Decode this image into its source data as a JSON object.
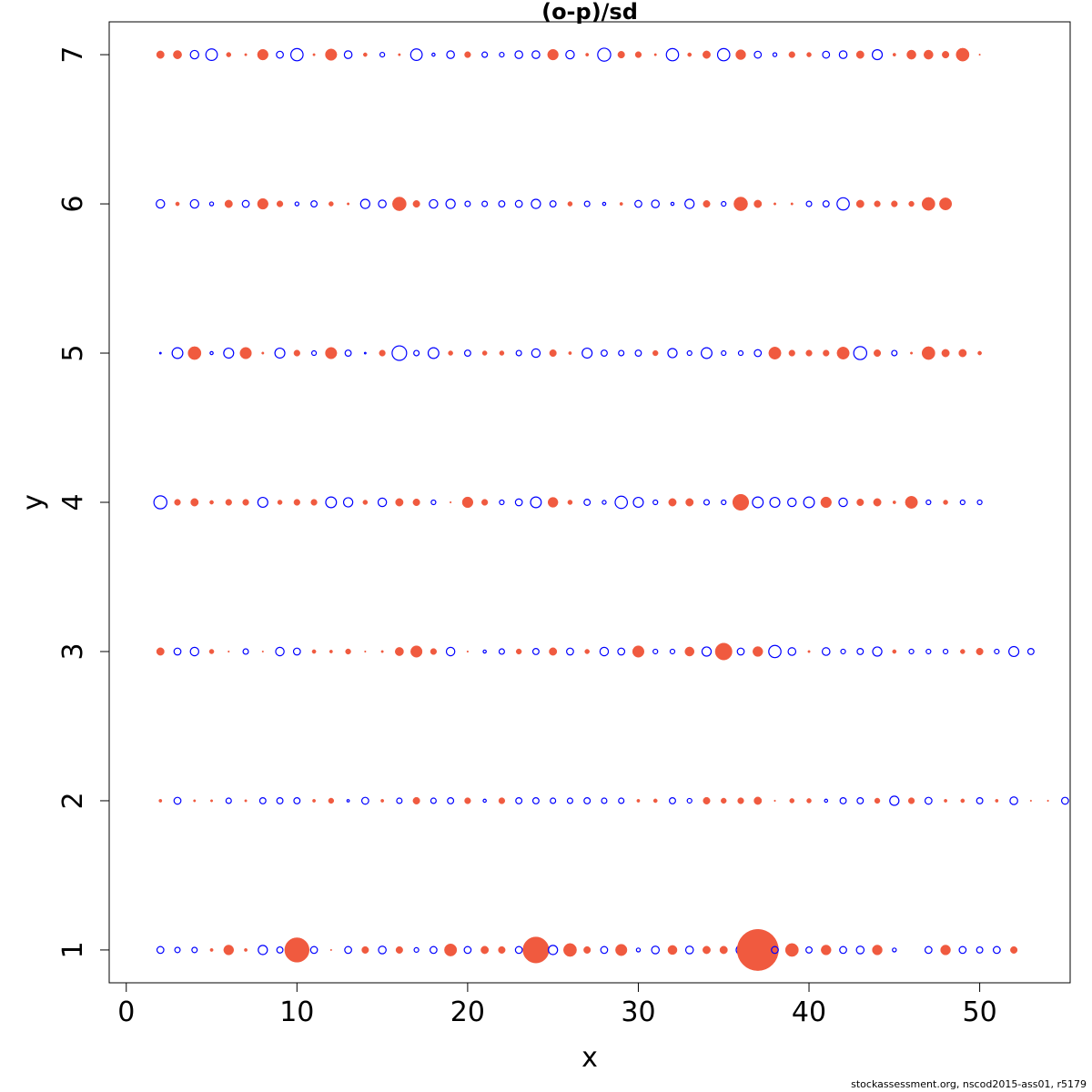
{
  "chart_data": {
    "type": "scatter",
    "title": "(o-p)/sd",
    "xlabel": "x",
    "ylabel": "y",
    "xlim": [
      -1,
      55.3
    ],
    "ylim": [
      0.78,
      7.22
    ],
    "x_ticks": [
      0,
      10,
      20,
      30,
      40,
      50
    ],
    "y_ticks": [
      1,
      2,
      3,
      4,
      5,
      6,
      7
    ],
    "grid": false,
    "marker_encoding": "circle radius proportional to |residual|; filled tomato = positive, open blue = negative",
    "positive_color": "#F05A3F",
    "negative_color": "#0000FF",
    "series": [
      {
        "y": 1,
        "residuals": [
          -0.9,
          -0.7,
          -0.7,
          0.4,
          1.3,
          0.4,
          -1.2,
          -0.8,
          3.2,
          -0.9,
          0.1,
          -0.9,
          0.9,
          -1.0,
          0.9,
          -0.6,
          -0.9,
          1.6,
          -0.9,
          1.0,
          0.9,
          -0.9,
          3.4,
          -1.2,
          1.7,
          0.9,
          -0.9,
          1.5,
          -0.5,
          -1.0,
          1.2,
          -1.0,
          1.0,
          1.0,
          -1.2,
          5.4,
          -0.9,
          1.7,
          -0.8,
          1.3,
          -0.9,
          -1.0,
          1.3,
          -0.5,
          null,
          -0.9,
          1.3,
          -0.9,
          -0.8,
          -0.9,
          0.9
        ]
      },
      {
        "y": 2,
        "residuals": [
          0.4,
          -0.9,
          0.3,
          0.3,
          -0.7,
          0.3,
          -0.8,
          -0.8,
          -0.8,
          0.4,
          0.7,
          -0.3,
          -0.9,
          0.4,
          -0.7,
          0.9,
          -0.7,
          -0.8,
          0.8,
          -0.4,
          0.8,
          -0.8,
          -0.8,
          -0.7,
          -0.7,
          -0.8,
          -0.7,
          -0.7,
          0.4,
          0.5,
          -0.8,
          -0.6,
          0.9,
          0.7,
          0.8,
          1.0,
          0.2,
          0.6,
          0.6,
          -0.4,
          -0.8,
          -0.8,
          0.7,
          -1.2,
          0.8,
          -0.9,
          0.4,
          0.5,
          -0.8,
          0.4,
          -1.0,
          0.1,
          0.2,
          -0.9
        ]
      },
      {
        "y": 3,
        "residuals": [
          1.0,
          -0.9,
          -1.1,
          0.6,
          0.2,
          -0.7,
          0.1,
          -1.1,
          -0.9,
          0.5,
          0.4,
          0.7,
          0.2,
          0.3,
          1.1,
          1.5,
          0.8,
          -1.1,
          0.2,
          -0.4,
          -0.7,
          0.7,
          -0.8,
          1.0,
          -0.9,
          0.6,
          -1.1,
          -0.9,
          1.5,
          -0.6,
          -0.6,
          1.2,
          -1.2,
          2.2,
          -0.9,
          1.3,
          -1.6,
          -1.0,
          0.3,
          -1.0,
          -0.6,
          -0.8,
          -1.2,
          0.5,
          -0.6,
          -0.6,
          -0.6,
          0.6,
          0.9,
          -0.6,
          -1.3,
          -0.8
        ]
      },
      {
        "y": 4,
        "residuals": [
          -1.7,
          0.8,
          1.0,
          0.5,
          0.8,
          0.8,
          -1.3,
          0.6,
          0.8,
          0.8,
          -1.4,
          -1.2,
          0.6,
          -1.1,
          1.0,
          0.9,
          -0.6,
          0.2,
          1.4,
          0.8,
          -0.6,
          -0.9,
          -1.4,
          1.3,
          0.6,
          -0.8,
          -0.5,
          -1.6,
          -1.3,
          -0.6,
          1.0,
          1.0,
          -0.7,
          -0.6,
          2.1,
          -1.4,
          -1.3,
          -1.1,
          -1.4,
          1.4,
          -1.1,
          0.9,
          1.0,
          0.4,
          1.6,
          -0.6,
          0.6,
          -0.6,
          -0.6
        ]
      },
      {
        "y": 5,
        "residuals": [
          -0.2,
          -1.4,
          1.7,
          -0.4,
          -1.3,
          1.5,
          0.3,
          -1.3,
          0.8,
          -0.6,
          1.5,
          -0.8,
          -0.2,
          0.8,
          -1.9,
          -0.7,
          -1.4,
          0.6,
          -0.8,
          0.6,
          0.6,
          -0.7,
          -1.1,
          0.9,
          0.4,
          -1.3,
          -0.8,
          -0.7,
          -0.8,
          0.7,
          -1.2,
          -0.6,
          -1.4,
          -0.6,
          -0.6,
          -0.9,
          1.6,
          0.8,
          0.8,
          0.8,
          1.6,
          -1.7,
          0.9,
          -0.7,
          0.3,
          1.7,
          1.0,
          1.0,
          0.5
        ]
      },
      {
        "y": 6,
        "residuals": [
          -1.1,
          0.5,
          -1.1,
          -0.5,
          1.0,
          -0.9,
          1.4,
          0.8,
          -0.5,
          -0.8,
          0.6,
          0.3,
          -1.2,
          -1.0,
          1.8,
          0.9,
          -1.1,
          -1.2,
          -0.7,
          -0.7,
          -0.8,
          -0.9,
          -1.2,
          -0.8,
          0.6,
          -0.7,
          -0.4,
          0.4,
          -0.9,
          -1.0,
          -0.4,
          -1.2,
          0.9,
          -0.6,
          1.8,
          1.0,
          0.3,
          0.3,
          -0.7,
          -0.8,
          -1.6,
          1.0,
          0.8,
          0.8,
          0.7,
          1.7,
          1.6
        ]
      },
      {
        "y": 7,
        "residuals": [
          1.0,
          1.1,
          -1.1,
          -1.5,
          0.6,
          0.3,
          1.4,
          -0.9,
          -1.6,
          0.3,
          1.5,
          -1.0,
          0.5,
          -0.6,
          0.3,
          -1.5,
          -0.4,
          -1.0,
          0.8,
          -0.7,
          -0.6,
          -1.0,
          -1.0,
          1.4,
          -1.1,
          0.4,
          -1.7,
          0.9,
          0.8,
          0.3,
          -1.6,
          0.5,
          1.0,
          -1.6,
          1.3,
          -0.9,
          -0.5,
          0.8,
          0.6,
          -0.9,
          -1.0,
          1.0,
          -1.3,
          0.4,
          1.2,
          1.2,
          0.9,
          1.7,
          0.1
        ]
      }
    ]
  },
  "footer": "stockassessment.org, nscod2015-ass01, r5179"
}
